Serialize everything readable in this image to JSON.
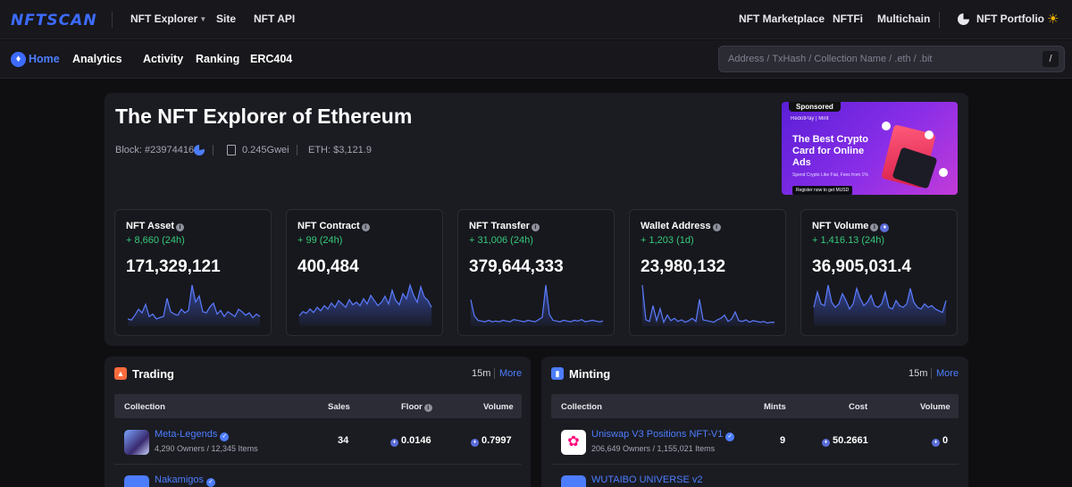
{
  "header": {
    "logo": "NFTSCAN",
    "nav_left": [
      "NFT Explorer",
      "Site",
      "NFT API"
    ],
    "nav_right": [
      "NFT Marketplace",
      "NFTFi",
      "Multichain",
      "NFT Portfolio"
    ]
  },
  "navbar": {
    "items": [
      "Home",
      "Analytics",
      "Activity",
      "Ranking",
      "ERC404"
    ],
    "active": "Home",
    "search_placeholder": "Address / TxHash / Collection Name / .eth / .bit",
    "search_shortcut": "/"
  },
  "hero": {
    "title": "The NFT Explorer of Ethereum",
    "block": "Block: #23974416",
    "gas": "0.245Gwei",
    "eth_price": "ETH: $3,121.9",
    "ad": {
      "badge": "Sponsored",
      "brand": "RedotPay | Mint",
      "headline": "The Best Crypto Card for Online Ads",
      "sub": "Spend Crypto Like Fiat, Fees from 1%",
      "cta": "Register now to get MUSD"
    }
  },
  "stats": [
    {
      "title": "NFT Asset",
      "delta": "+ 8,660 (24h)",
      "value": "171,329,121",
      "spark": [
        6,
        5,
        9,
        14,
        11,
        18,
        8,
        10,
        6,
        7,
        8,
        23,
        12,
        10,
        9,
        14,
        11,
        13,
        34,
        20,
        25,
        12,
        11,
        16,
        19,
        10,
        13,
        8,
        12,
        10,
        8,
        14,
        12,
        9,
        11,
        7,
        10,
        8
      ]
    },
    {
      "title": "NFT Contract",
      "delta": "+ 99 (24h)",
      "value": "400,484",
      "spark": [
        12,
        17,
        15,
        20,
        16,
        22,
        18,
        24,
        20,
        27,
        22,
        30,
        26,
        22,
        31,
        25,
        28,
        24,
        32,
        26,
        36,
        30,
        24,
        28,
        35,
        26,
        42,
        30,
        25,
        38,
        32,
        48,
        36,
        28,
        46,
        34,
        30,
        22
      ]
    },
    {
      "title": "NFT Transfer",
      "delta": "+ 31,006 (24h)",
      "value": "379,644,333",
      "spark": [
        36,
        14,
        8,
        7,
        6,
        8,
        6,
        7,
        6,
        8,
        7,
        6,
        9,
        8,
        7,
        6,
        8,
        7,
        6,
        9,
        12,
        56,
        16,
        8,
        7,
        6,
        8,
        7,
        6,
        8,
        7,
        9,
        6,
        7,
        8,
        7,
        6,
        7
      ]
    },
    {
      "title": "Wallet Address",
      "delta": "+ 1,203 (1d)",
      "value": "23,980,132",
      "spark": [
        52,
        8,
        6,
        26,
        7,
        22,
        5,
        14,
        7,
        10,
        6,
        8,
        5,
        7,
        10,
        6,
        34,
        8,
        7,
        6,
        5,
        8,
        10,
        14,
        6,
        9,
        18,
        7,
        6,
        8,
        5,
        7,
        6,
        5,
        6,
        4,
        5,
        5
      ]
    },
    {
      "title": "NFT Volume",
      "delta": "+ 1,416.13 (24h)",
      "value": "36,905,031.4",
      "spark": [
        22,
        40,
        26,
        24,
        48,
        28,
        22,
        26,
        38,
        30,
        20,
        26,
        44,
        32,
        24,
        28,
        36,
        24,
        22,
        26,
        40,
        22,
        20,
        30,
        24,
        22,
        26,
        44,
        28,
        22,
        20,
        26,
        22,
        24,
        20,
        18,
        16,
        30
      ]
    }
  ],
  "trading": {
    "title": "Trading",
    "interval": "15m",
    "more": "More",
    "columns": [
      "Collection",
      "Sales",
      "Floor",
      "Volume"
    ],
    "rows": [
      {
        "name": "Meta-Legends",
        "sub": "4,290 Owners / 12,345 Items",
        "sales": "34",
        "floor": "0.0146",
        "volume": "0.7997"
      },
      {
        "name": "Nakamigos",
        "sub": "",
        "sales": "",
        "floor": "",
        "volume": ""
      }
    ]
  },
  "minting": {
    "title": "Minting",
    "interval": "15m",
    "more": "More",
    "columns": [
      "Collection",
      "Mints",
      "Cost",
      "Volume"
    ],
    "rows": [
      {
        "name": "Uniswap V3 Positions NFT-V1",
        "sub": "206,649 Owners / 1,155,021 Items",
        "mints": "9",
        "cost": "50.2661",
        "volume": "0"
      },
      {
        "name": "WUTAIBO UNIVERSE v2",
        "sub": "",
        "mints": "",
        "cost": "",
        "volume": ""
      }
    ]
  },
  "colors": {
    "accent": "#4d7dff",
    "positive": "#36c97c",
    "background": "#0f0f12",
    "panel": "#1b1c22"
  }
}
